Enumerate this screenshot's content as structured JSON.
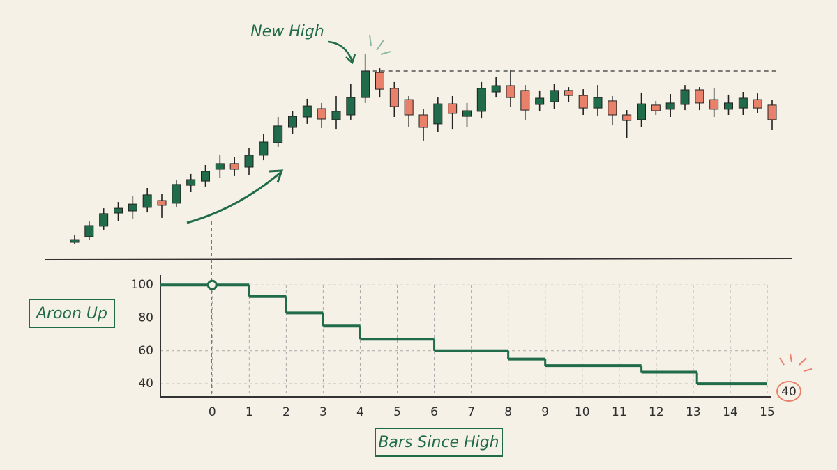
{
  "chart_data": [
    {
      "type": "candlestick",
      "annotation": "New High",
      "up_color": "#1f6b4a",
      "down_color": "#e98069",
      "ylim": [
        0,
        100
      ],
      "open": [
        4,
        6.7,
        11.7,
        18,
        19,
        20.7,
        24,
        22.7,
        31.3,
        33.3,
        39,
        41.7,
        40,
        45.7,
        51.7,
        59,
        64,
        68,
        62.7,
        65,
        73.3,
        85.3,
        77.7,
        72.3,
        65,
        60.7,
        70.3,
        64.3,
        66.7,
        76,
        79,
        76.7,
        70,
        71.3,
        76.7,
        74.3,
        68.3,
        71.7,
        65,
        62.7,
        69.7,
        67.7,
        70,
        77,
        72.3,
        67.7,
        68.3,
        72.3,
        69.7
      ],
      "high": [
        7.7,
        14,
        20.3,
        23.3,
        26.3,
        30,
        27.3,
        34,
        36.7,
        41,
        45.7,
        44.7,
        49.3,
        55.7,
        64,
        66.7,
        72.7,
        70.7,
        74,
        80,
        94.3,
        87.3,
        80.7,
        74,
        68,
        73.3,
        74,
        70.7,
        80.7,
        83.3,
        86.7,
        79.3,
        76.7,
        80,
        78.3,
        77.3,
        79.3,
        74,
        67.3,
        75.7,
        71.7,
        75,
        79.3,
        78.3,
        78,
        74.7,
        76,
        75.3,
        72.3
      ],
      "low": [
        3,
        5,
        10,
        14,
        15.3,
        18.3,
        15.7,
        20.7,
        28,
        30.7,
        35,
        35.7,
        36,
        43.3,
        49.7,
        55.7,
        60.7,
        58.7,
        58.3,
        62.7,
        70.7,
        73.3,
        64,
        59.3,
        52.7,
        56.7,
        58.3,
        59,
        63.3,
        73.3,
        69,
        62.7,
        66.7,
        67.7,
        71.3,
        65,
        64.7,
        60,
        54,
        59.3,
        65,
        64,
        67.3,
        67.3,
        64,
        65,
        65,
        65.7,
        58
      ],
      "close": [
        5.3,
        12,
        17.7,
        20.3,
        22.3,
        26.7,
        21.7,
        31.7,
        34,
        38,
        41.7,
        39,
        45.7,
        52,
        59.7,
        64.3,
        69.3,
        63,
        66.7,
        73.3,
        86,
        77.3,
        69,
        65,
        59,
        70.3,
        65.7,
        67,
        77.7,
        79,
        73.3,
        67.3,
        73,
        76.7,
        74.3,
        68.3,
        73.3,
        65,
        62.3,
        70.3,
        67,
        70.7,
        77,
        70.7,
        67.7,
        70.7,
        73,
        68.3,
        62.7
      ]
    },
    {
      "type": "line",
      "step": true,
      "color": "#1f6b4a",
      "ylabel": "Aroon Up",
      "xlabel": "Bars Since High",
      "x": [
        -1.4,
        1,
        2,
        3,
        4,
        6,
        8,
        9,
        11.6,
        13.1
      ],
      "values": [
        100,
        93,
        83,
        75,
        67,
        60,
        55,
        51,
        47,
        40
      ],
      "xlim": [
        -1.4,
        15
      ],
      "ylim": [
        32,
        106
      ],
      "xticks": [
        0,
        1,
        2,
        3,
        4,
        5,
        6,
        7,
        8,
        9,
        10,
        11,
        12,
        13,
        14,
        15
      ],
      "yticks": [
        40,
        60,
        80,
        100
      ],
      "grid": true
    }
  ]
}
